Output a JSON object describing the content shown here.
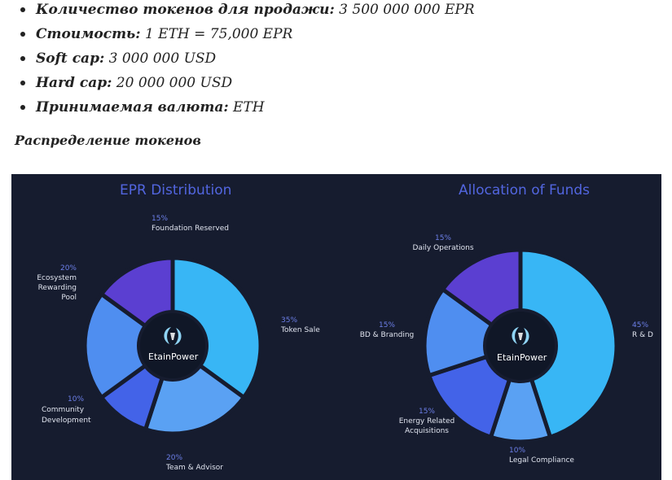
{
  "specs": [
    {
      "label": "Количество токенов для продажи:",
      "value": "3 500 000 000 EPR"
    },
    {
      "label": "Стоимость:",
      "value": "1 ETH = 75,000 EPR"
    },
    {
      "label": "Soft cap:",
      "value": "3 000 000 USD"
    },
    {
      "label": "Hard cap:",
      "value": "20 000 000 USD"
    },
    {
      "label": "Принимаемая валюта:",
      "value": "ETH"
    }
  ],
  "section_heading": "Распределение токенов",
  "logo_text": "EtainPower",
  "colors": {
    "background": "#161c2f",
    "title": "#5266e0",
    "percent": "#6c7fe8",
    "hub": "#101727",
    "logo": "#8fd4f5"
  },
  "chart_data": [
    {
      "type": "pie",
      "title": "EPR Distribution",
      "slices": [
        {
          "name": "Token Sale",
          "lines": [
            "Token Sale"
          ],
          "value": 35,
          "label": "35%",
          "color": "#38b6f5"
        },
        {
          "name": "Team & Advisor",
          "lines": [
            "Team & Advisor"
          ],
          "value": 20,
          "label": "20%",
          "color": "#5aa1f3"
        },
        {
          "name": "Community Development",
          "lines": [
            "Community",
            "Development"
          ],
          "value": 10,
          "label": "10%",
          "color": "#4363e8"
        },
        {
          "name": "Ecosystem Rewarding Pool",
          "lines": [
            "Ecosystem",
            "Rewarding Pool"
          ],
          "value": 20,
          "label": "20%",
          "color": "#4f8ef0"
        },
        {
          "name": "Foundation Reserved",
          "lines": [
            "Foundation Reserved"
          ],
          "value": 15,
          "label": "15%",
          "color": "#5b3fd1"
        }
      ]
    },
    {
      "type": "pie",
      "title": "Allocation of Funds",
      "slices": [
        {
          "name": "R & D",
          "lines": [
            "R & D"
          ],
          "value": 45,
          "label": "45%",
          "color": "#38b6f5"
        },
        {
          "name": "Legal Compliance",
          "lines": [
            "Legal Compliance"
          ],
          "value": 10,
          "label": "10%",
          "color": "#5aa1f3"
        },
        {
          "name": "Energy Related Acquisitions",
          "lines": [
            "Energy Related",
            "Acquisitions"
          ],
          "value": 15,
          "label": "15%",
          "color": "#4363e8"
        },
        {
          "name": "BD & Branding",
          "lines": [
            "BD & Branding"
          ],
          "value": 15,
          "label": "15%",
          "color": "#4f8ef0"
        },
        {
          "name": "Daily Operations",
          "lines": [
            "Daily Operations"
          ],
          "value": 15,
          "label": "15%",
          "color": "#5b3fd1"
        }
      ]
    }
  ]
}
